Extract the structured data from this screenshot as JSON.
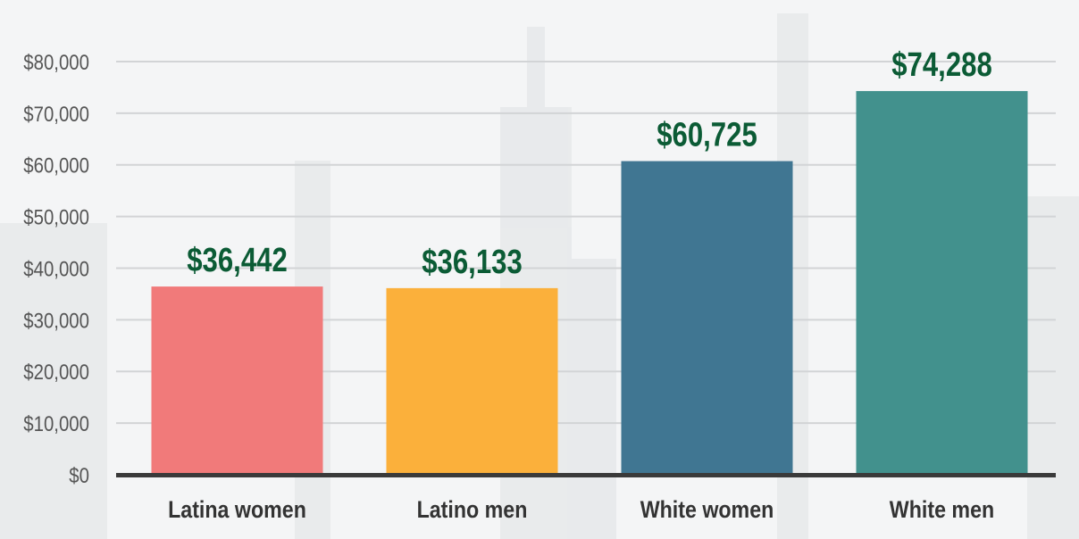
{
  "chart_data": {
    "type": "bar",
    "categories": [
      "Latina women",
      "Latino men",
      "White women",
      "White men"
    ],
    "values": [
      36442,
      36133,
      60725,
      74288
    ],
    "data_labels": [
      "$36,442",
      "$36,133",
      "$60,725",
      "$74,288"
    ],
    "colors": [
      "#F17A7A",
      "#FBB03B",
      "#407692",
      "#42918D"
    ],
    "label_color": "#0B5B35",
    "ylim": [
      0,
      80000
    ],
    "yticks": [
      0,
      10000,
      20000,
      30000,
      40000,
      50000,
      60000,
      70000,
      80000
    ],
    "ytick_labels": [
      "$0",
      "$10,000",
      "$20,000",
      "$30,000",
      "$40,000",
      "$50,000",
      "$60,000",
      "$70,000",
      "$80,000"
    ],
    "grid": true,
    "title": "",
    "xlabel": "",
    "ylabel": ""
  }
}
